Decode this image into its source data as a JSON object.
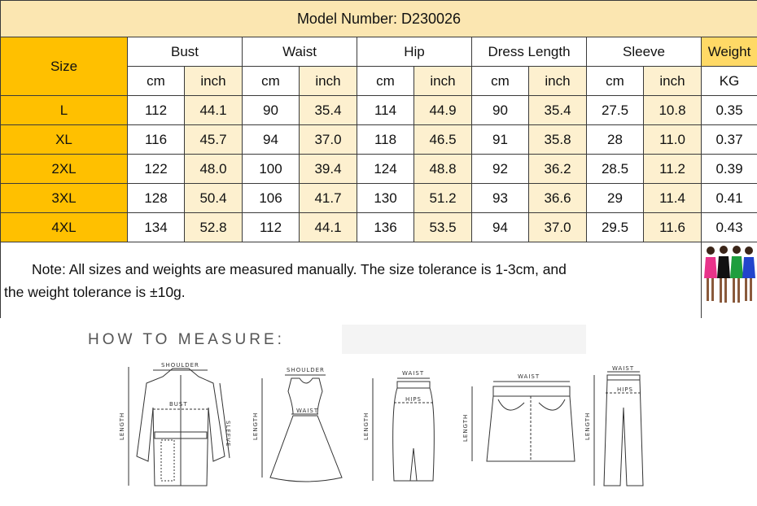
{
  "title": "Model Number: D230026",
  "headers": {
    "size": "Size",
    "bust": "Bust",
    "waist": "Waist",
    "hip": "Hip",
    "dress_length": "Dress Length",
    "sleeve": "Sleeve",
    "weight": "Weight",
    "cm": "cm",
    "inch": "inch",
    "kg": "KG"
  },
  "rows": [
    {
      "size": "L",
      "bust_cm": "112",
      "bust_in": "44.1",
      "waist_cm": "90",
      "waist_in": "35.4",
      "hip_cm": "114",
      "hip_in": "44.9",
      "len_cm": "90",
      "len_in": "35.4",
      "sleeve_cm": "27.5",
      "sleeve_in": "10.8",
      "kg": "0.35"
    },
    {
      "size": "XL",
      "bust_cm": "116",
      "bust_in": "45.7",
      "waist_cm": "94",
      "waist_in": "37.0",
      "hip_cm": "118",
      "hip_in": "46.5",
      "len_cm": "91",
      "len_in": "35.8",
      "sleeve_cm": "28",
      "sleeve_in": "11.0",
      "kg": "0.37"
    },
    {
      "size": "2XL",
      "bust_cm": "122",
      "bust_in": "48.0",
      "waist_cm": "100",
      "waist_in": "39.4",
      "hip_cm": "124",
      "hip_in": "48.8",
      "len_cm": "92",
      "len_in": "36.2",
      "sleeve_cm": "28.5",
      "sleeve_in": "11.2",
      "kg": "0.39"
    },
    {
      "size": "3XL",
      "bust_cm": "128",
      "bust_in": "50.4",
      "waist_cm": "106",
      "waist_in": "41.7",
      "hip_cm": "130",
      "hip_in": "51.2",
      "len_cm": "93",
      "len_in": "36.6",
      "sleeve_cm": "29",
      "sleeve_in": "11.4",
      "kg": "0.41"
    },
    {
      "size": "4XL",
      "bust_cm": "134",
      "bust_in": "52.8",
      "waist_cm": "112",
      "waist_in": "44.1",
      "hip_cm": "136",
      "hip_in": "53.5",
      "len_cm": "94",
      "len_in": "37.0",
      "sleeve_cm": "29.5",
      "sleeve_in": "11.6",
      "kg": "0.43"
    }
  ],
  "note": {
    "line1": "Note: All sizes and weights are  measured manually. The size tolerance is 1-3cm, and",
    "line2": "the weight tolerance is ±10g."
  },
  "model_photo": {
    "dress_colors": [
      "#e8338a",
      "#111111",
      "#1e9e3e",
      "#2244cc"
    ]
  },
  "how_to": {
    "heading": "HOW TO MEASURE:",
    "labels": {
      "shoulder": "SHOULDER",
      "bust": "BUST",
      "length": "LENGTH",
      "sleeve": "SLEEVE",
      "waist": "WAIST",
      "hips": "HIPS"
    }
  },
  "colors": {
    "header_yellow": "#ffc000",
    "title_bg": "#fbe6b1",
    "weight_bg": "#ffd966"
  }
}
